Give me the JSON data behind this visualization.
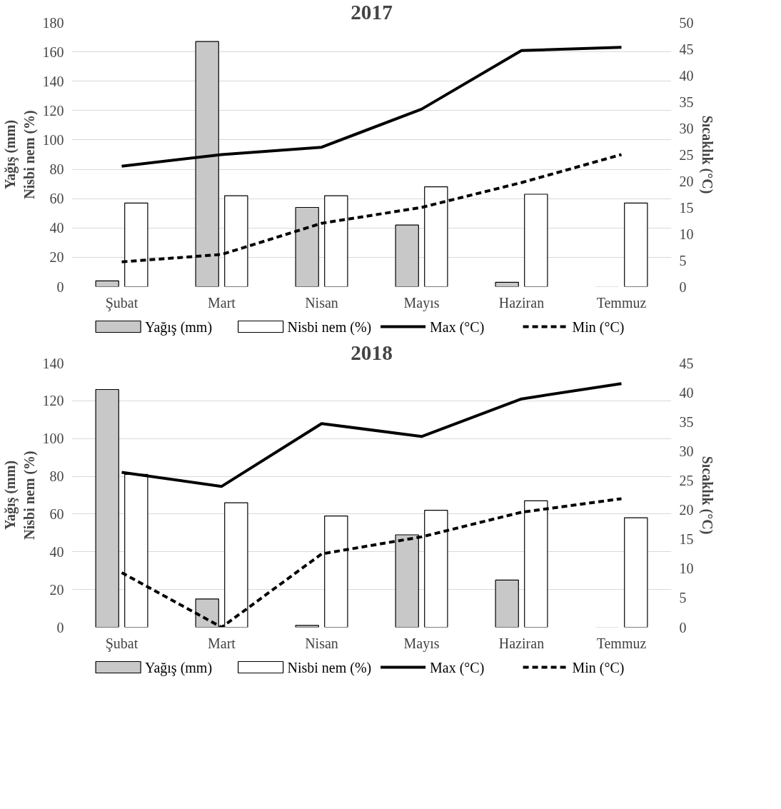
{
  "chart_data": [
    {
      "type": "bar",
      "title": "2017",
      "categories": [
        "Şubat",
        "Mart",
        "Nisan",
        "Mayıs",
        "Haziran",
        "Temmuz"
      ],
      "ylabel": "Yağış (mm)\nNisbi nem (%)",
      "y2label": "Sıcaklık (°C)",
      "ylim": [
        0,
        180
      ],
      "yticks": [
        0,
        20,
        40,
        60,
        80,
        100,
        120,
        140,
        160,
        180
      ],
      "y2lim": [
        0,
        50
      ],
      "y2ticks": [
        0,
        5,
        10,
        15,
        20,
        25,
        30,
        35,
        40,
        45,
        50
      ],
      "grid": "y",
      "legend": "bottom",
      "series": [
        {
          "name": "Yağış (mm)",
          "color": "#c8c8c8",
          "values": [
            4,
            167,
            54,
            42,
            3,
            0
          ]
        },
        {
          "name": "Nisbi nem (%)",
          "color": "#ffffff",
          "values": [
            57,
            62,
            62,
            68,
            63,
            57
          ]
        },
        {
          "name": "Max (°C)",
          "type": "line",
          "axis": "y2",
          "color": "#000000",
          "line_style": "solid",
          "values": [
            22.8,
            25,
            26.4,
            33.6,
            44.7,
            45.3
          ]
        },
        {
          "name": "Min (°C)",
          "type": "line",
          "axis": "y2",
          "color": "#000000",
          "line_style": "dashed",
          "values": [
            4.7,
            6.1,
            12,
            15,
            19.7,
            25
          ]
        }
      ]
    },
    {
      "type": "bar",
      "title": "2018",
      "categories": [
        "Şubat",
        "Mart",
        "Nisan",
        "Mayıs",
        "Haziran",
        "Temmuz"
      ],
      "ylabel": "Yağış (mm)\nNisbi nem (%)",
      "y2label": "Sıcaklık (°C)",
      "ylim": [
        0,
        140
      ],
      "yticks": [
        0,
        20,
        40,
        60,
        80,
        100,
        120,
        140
      ],
      "y2lim": [
        0,
        45
      ],
      "y2ticks": [
        0,
        5,
        10,
        15,
        20,
        25,
        30,
        35,
        40,
        45
      ],
      "grid": "y",
      "legend": "bottom",
      "series": [
        {
          "name": "Yağış (mm)",
          "color": "#c8c8c8",
          "values": [
            126,
            15,
            1,
            49,
            25,
            0
          ]
        },
        {
          "name": "Nisbi nem (%)",
          "color": "#ffffff",
          "values": [
            81,
            66,
            59,
            62,
            67,
            58
          ]
        },
        {
          "name": "Max (°C)",
          "type": "line",
          "axis": "y2",
          "color": "#000000",
          "line_style": "solid",
          "values": [
            26.4,
            24,
            34.7,
            32.5,
            38.9,
            41.5
          ]
        },
        {
          "name": "Min (°C)",
          "type": "line",
          "axis": "y2",
          "color": "#000000",
          "line_style": "dashed",
          "values": [
            9.3,
            0,
            12.5,
            15.4,
            19.6,
            21.9
          ]
        }
      ]
    }
  ]
}
